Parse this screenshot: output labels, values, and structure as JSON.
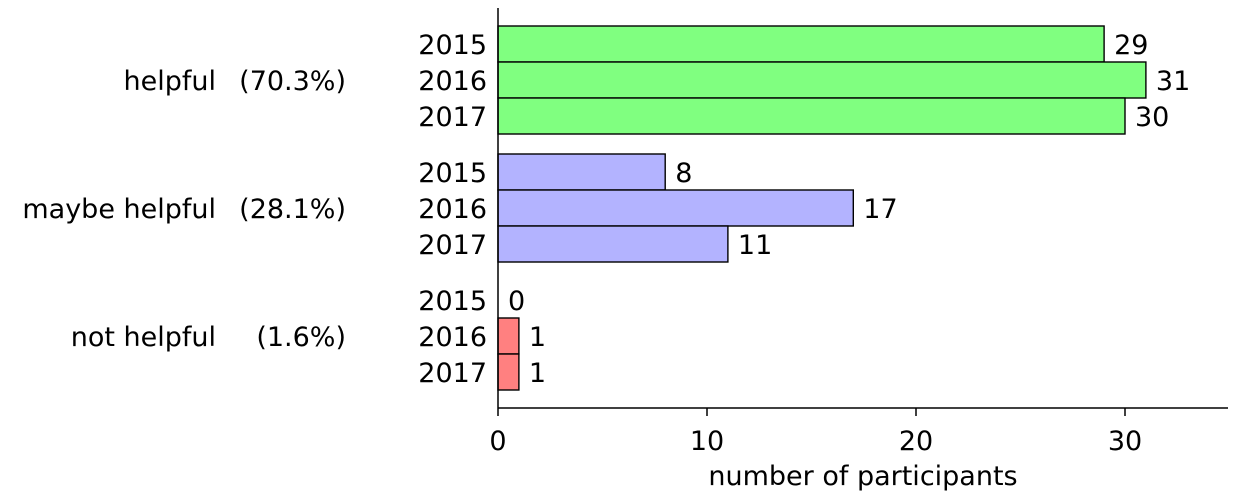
{
  "chart_data": {
    "type": "bar",
    "orientation": "horizontal",
    "xlabel": "number of participants",
    "xlim": [
      0,
      35
    ],
    "x_ticks": [
      "0",
      "10",
      "20",
      "30"
    ],
    "grid": false,
    "groups": [
      {
        "label": "helpful",
        "percent": "(70.3%)",
        "color": "#80ff80",
        "bars": [
          {
            "year": "2015",
            "value": 29
          },
          {
            "year": "2016",
            "value": 31
          },
          {
            "year": "2017",
            "value": 30
          }
        ]
      },
      {
        "label": "maybe helpful",
        "percent": "(28.1%)",
        "color": "#b3b3ff",
        "bars": [
          {
            "year": "2015",
            "value": 8
          },
          {
            "year": "2016",
            "value": 17
          },
          {
            "year": "2017",
            "value": 11
          }
        ]
      },
      {
        "label": "not helpful",
        "percent": "(1.6%)",
        "color": "#ff8080",
        "bars": [
          {
            "year": "2015",
            "value": 0
          },
          {
            "year": "2016",
            "value": 1
          },
          {
            "year": "2017",
            "value": 1
          }
        ]
      }
    ]
  }
}
